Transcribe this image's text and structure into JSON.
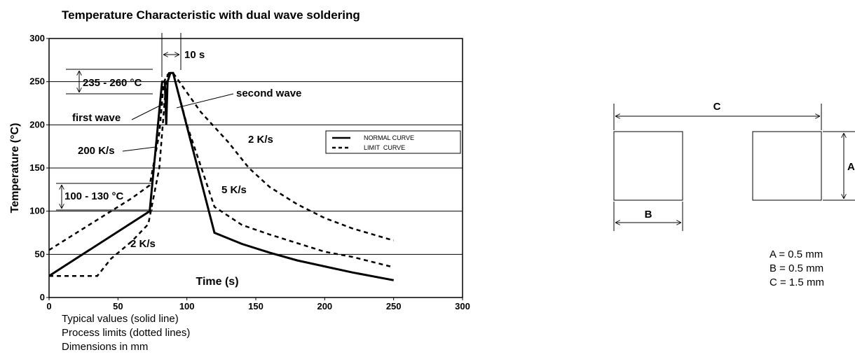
{
  "chart_data": {
    "type": "line",
    "title": "Temperature Characteristic with dual wave soldering",
    "xlabel": "Time (s)",
    "ylabel": "Temperature (°C)",
    "xlim": [
      0,
      300
    ],
    "ylim": [
      0,
      300
    ],
    "x_ticks": [
      "0",
      "50",
      "100",
      "150",
      "200",
      "250",
      "300"
    ],
    "y_ticks": [
      "0",
      "50",
      "100",
      "150",
      "200",
      "250",
      "300"
    ],
    "grid": "horizontal",
    "legend": {
      "placement": "right",
      "entries": [
        {
          "label": "NORMAL CURVE",
          "style": "solid"
        },
        {
          "label": "LIMIT  CURVE",
          "style": "dashed"
        }
      ]
    },
    "series": [
      {
        "name": "NORMAL CURVE",
        "style": "solid",
        "points": [
          [
            0,
            25
          ],
          [
            73,
            100
          ],
          [
            82,
            250
          ],
          [
            84,
            250
          ],
          [
            85,
            200
          ],
          [
            86,
            250
          ],
          [
            88,
            260
          ],
          [
            90,
            260
          ],
          [
            120,
            75
          ],
          [
            140,
            62
          ],
          [
            160,
            52
          ],
          [
            180,
            43
          ],
          [
            200,
            36
          ],
          [
            220,
            29
          ],
          [
            250,
            20
          ]
        ]
      },
      {
        "name": "LIMIT  CURVE",
        "style": "dashed",
        "segments": [
          [
            [
              0,
              55
            ],
            [
              20,
              75
            ],
            [
              40,
              95
            ],
            [
              60,
              115
            ],
            [
              73,
              130
            ],
            [
              80,
              190
            ],
            [
              83,
              245
            ],
            [
              84,
              252
            ],
            [
              87,
              260
            ],
            [
              90,
              260
            ],
            [
              110,
              215
            ],
            [
              130,
              180
            ],
            [
              145,
              150
            ],
            [
              160,
              128
            ],
            [
              180,
              108
            ],
            [
              200,
              92
            ],
            [
              220,
              80
            ],
            [
              250,
              66
            ]
          ],
          [
            [
              0,
              25
            ],
            [
              35,
              25
            ],
            [
              45,
              45
            ],
            [
              60,
              65
            ],
            [
              72,
              85
            ],
            [
              80,
              150
            ],
            [
              84,
              230
            ],
            [
              86,
              258
            ],
            [
              90,
              260
            ],
            [
              100,
              200
            ],
            [
              120,
              105
            ],
            [
              140,
              84
            ],
            [
              160,
              73
            ],
            [
              180,
              63
            ],
            [
              200,
              53
            ],
            [
              220,
              47
            ],
            [
              250,
              35
            ]
          ]
        ]
      }
    ],
    "annotations": [
      {
        "text": "10 s"
      },
      {
        "text": "235 - 260 °C"
      },
      {
        "text": "second wave"
      },
      {
        "text": "first wave"
      },
      {
        "text": "2 K/s"
      },
      {
        "text": "200 K/s"
      },
      {
        "text": "5 K/s"
      },
      {
        "text": "100 - 130 °C"
      },
      {
        "text": "2 K/s"
      },
      {
        "text": "Time (s)"
      }
    ]
  },
  "notes": [
    "Typical values (solid line)",
    "Process limits (dotted lines)",
    "Dimensions in mm"
  ],
  "pad_diagram": {
    "labels": {
      "c": "C",
      "a": "A",
      "b": "B"
    },
    "dims": [
      "A = 0.5 mm",
      "B = 0.5 mm",
      "C = 1.5 mm"
    ]
  }
}
